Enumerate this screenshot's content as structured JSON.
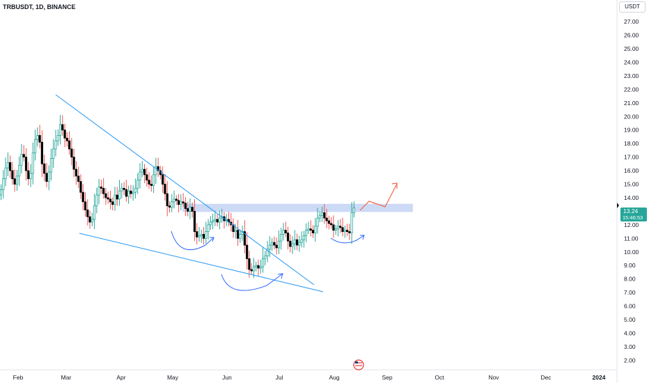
{
  "header": {
    "symbol": "TRBUSDT, 1D, BINANCE",
    "currency": "USDT"
  },
  "price_badge": {
    "price": "13.24",
    "countdown": "15:46:53",
    "color": "#26a69a"
  },
  "colors": {
    "up": "#26a69a",
    "up_fill": "#ffffff",
    "down": "#000000",
    "wick_up": "#26a69a",
    "wick_down": "#ef5350",
    "trendline": "#2196f3",
    "zone": "#c8d6f5",
    "projection": "#f0674b",
    "curve": "#2962ff"
  },
  "chart_data": {
    "type": "candlestick",
    "title": "",
    "xlabel": "",
    "ylabel": "",
    "ylim": [
      1.5,
      28.0
    ],
    "y_ticks": [
      "2.00",
      "3.00",
      "4.00",
      "5.00",
      "6.00",
      "7.00",
      "8.00",
      "9.00",
      "10.00",
      "11.00",
      "12.00",
      "13.00",
      "14.00",
      "15.00",
      "16.00",
      "17.00",
      "18.00",
      "19.00",
      "20.00",
      "21.00",
      "22.00",
      "23.00",
      "24.00",
      "25.00",
      "26.00",
      "27.00"
    ],
    "x_ticks": [
      "Feb",
      "Mar",
      "Apr",
      "May",
      "Jun",
      "Jul",
      "Aug",
      "Sep",
      "Oct",
      "Nov",
      "Dec",
      "2024"
    ],
    "closes": [
      14.6,
      15.4,
      16.2,
      16.6,
      16.0,
      15.4,
      15.0,
      15.6,
      16.4,
      17.2,
      17.0,
      16.0,
      15.4,
      15.8,
      17.3,
      18.3,
      18.6,
      18.1,
      16.5,
      15.8,
      15.2,
      15.9,
      16.9,
      17.6,
      18.2,
      18.6,
      19.4,
      19.0,
      18.4,
      18.2,
      17.6,
      17.0,
      16.1,
      15.6,
      15.2,
      14.4,
      13.7,
      13.1,
      12.6,
      12.2,
      12.4,
      13.4,
      14.2,
      14.8,
      14.7,
      14.3,
      14.0,
      13.9,
      13.7,
      13.5,
      14.2,
      13.9,
      14.5,
      14.7,
      14.6,
      14.1,
      14.5,
      14.3,
      14.4,
      14.7,
      15.3,
      15.9,
      16.1,
      15.7,
      15.3,
      15.0,
      14.9,
      15.7,
      16.3,
      16.0,
      15.7,
      15.0,
      14.3,
      13.4,
      13.3,
      13.7,
      13.9,
      13.8,
      13.5,
      13.7,
      13.6,
      13.2,
      13.0,
      13.3,
      13.0,
      11.5,
      11.1,
      11.2,
      11.3,
      11.0,
      11.5,
      12.0,
      12.2,
      12.3,
      12.4,
      12.2,
      12.5,
      12.6,
      12.3,
      12.4,
      12.2,
      12.0,
      11.5,
      11.6,
      11.0,
      11.3,
      11.5,
      10.5,
      9.5,
      8.7,
      8.6,
      8.9,
      9.0,
      8.8,
      8.9,
      9.5,
      9.7,
      10.2,
      10.5,
      10.7,
      10.5,
      10.3,
      10.8,
      11.3,
      11.6,
      11.4,
      10.8,
      10.4,
      10.6,
      10.9,
      10.5,
      10.7,
      10.9,
      11.2,
      11.6,
      11.7,
      11.6,
      11.4,
      11.9,
      12.5,
      12.7,
      12.9,
      12.5,
      12.3,
      12.1,
      12.0,
      11.6,
      11.7,
      11.9,
      11.8,
      11.5,
      11.6,
      11.5,
      11.4,
      12.9,
      13.24
    ],
    "annotations": {
      "resistance_zone": [
        12.95,
        13.55
      ],
      "projection_path": [
        [
          13.4,
          13.9
        ],
        [
          13.8,
          14.9
        ]
      ]
    }
  }
}
